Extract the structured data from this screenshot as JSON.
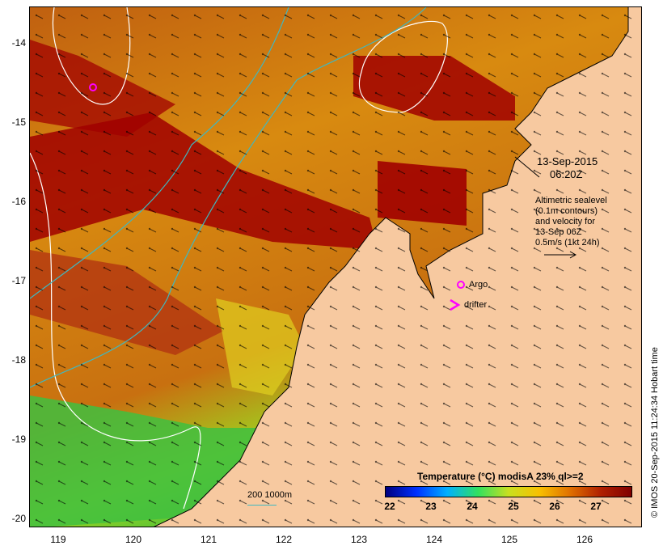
{
  "map": {
    "lon_ticks": [
      "119",
      "120",
      "121",
      "122",
      "123",
      "124",
      "125",
      "126"
    ],
    "lat_ticks": [
      "-14",
      "-15",
      "-16",
      "-17",
      "-18",
      "-19",
      "-20"
    ],
    "land_color": "#f7c9a0",
    "sea_warm_color": "#a00000",
    "sea_mid_color": "#d98a10",
    "sea_cool_color": "#3cc83c",
    "contour_color": "#ffffff",
    "isobath_color": "#3fb8c0",
    "argo_color": "#ff00ff"
  },
  "annotation": {
    "date": "13-Sep-2015",
    "time": "06:20Z",
    "info_lines": [
      "Altimetric sealevel",
      "(0.1m contours)",
      "and velocity for",
      "13-Sep 06Z",
      "0.5m/s (1kt 24h)"
    ]
  },
  "legend": {
    "argo_label": "Argo",
    "drifter_label": "drifter",
    "depth_label": "200  1000m"
  },
  "colorbar": {
    "title": "Temperature (°C) modisA 23% ql>=2",
    "ticks": [
      "22",
      "23",
      "24",
      "25",
      "26",
      "27"
    ],
    "colors": [
      "#00007f",
      "#0030ff",
      "#00b0ff",
      "#30e060",
      "#c8e020",
      "#f8c000",
      "#e07000",
      "#b02000",
      "#800000"
    ]
  },
  "credit": "© IMOS 20-Sep-2015 11:24:34 Hobart time"
}
